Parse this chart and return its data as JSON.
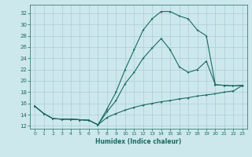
{
  "xlabel": "Humidex (Indice chaleur)",
  "xlim": [
    -0.5,
    23.5
  ],
  "ylim": [
    11.5,
    33.5
  ],
  "xticks": [
    0,
    1,
    2,
    3,
    4,
    5,
    6,
    7,
    8,
    9,
    10,
    11,
    12,
    13,
    14,
    15,
    16,
    17,
    18,
    19,
    20,
    21,
    22,
    23
  ],
  "yticks": [
    12,
    14,
    16,
    18,
    20,
    22,
    24,
    26,
    28,
    30,
    32
  ],
  "bg_color": "#cde8ec",
  "grid_color": "#a8cdd4",
  "line_color": "#1a6b60",
  "curve1_x": [
    0,
    1,
    2,
    3,
    4,
    5,
    6,
    7,
    8,
    9,
    10,
    11,
    12,
    13,
    14,
    15,
    16,
    17,
    18,
    19,
    20,
    21,
    22,
    23
  ],
  "curve1_y": [
    15.5,
    14.2,
    13.3,
    13.2,
    13.2,
    13.1,
    13.0,
    12.2,
    13.5,
    14.2,
    14.8,
    15.3,
    15.7,
    16.0,
    16.3,
    16.5,
    16.8,
    17.0,
    17.3,
    17.5,
    17.7,
    18.0,
    18.2,
    19.2
  ],
  "curve2_x": [
    0,
    1,
    2,
    3,
    4,
    5,
    6,
    7,
    8,
    9,
    10,
    11,
    12,
    13,
    14,
    15,
    16,
    17,
    18,
    19,
    20,
    21,
    22,
    23
  ],
  "curve2_y": [
    15.5,
    14.2,
    13.3,
    13.2,
    13.2,
    13.1,
    13.0,
    12.2,
    14.5,
    16.5,
    19.5,
    21.5,
    24.0,
    25.8,
    27.5,
    25.5,
    22.5,
    21.5,
    22.0,
    23.5,
    19.3,
    19.2,
    19.1,
    19.2
  ],
  "curve3_x": [
    0,
    1,
    2,
    3,
    4,
    5,
    6,
    7,
    8,
    9,
    10,
    11,
    12,
    13,
    14,
    15,
    16,
    17,
    18,
    19,
    20,
    21,
    22,
    23
  ],
  "curve3_y": [
    15.5,
    14.2,
    13.3,
    13.2,
    13.2,
    13.1,
    13.0,
    12.2,
    15.0,
    18.0,
    22.0,
    25.5,
    29.0,
    31.0,
    32.3,
    32.3,
    31.5,
    31.0,
    29.0,
    28.0,
    19.3,
    19.2,
    19.1,
    19.2
  ]
}
